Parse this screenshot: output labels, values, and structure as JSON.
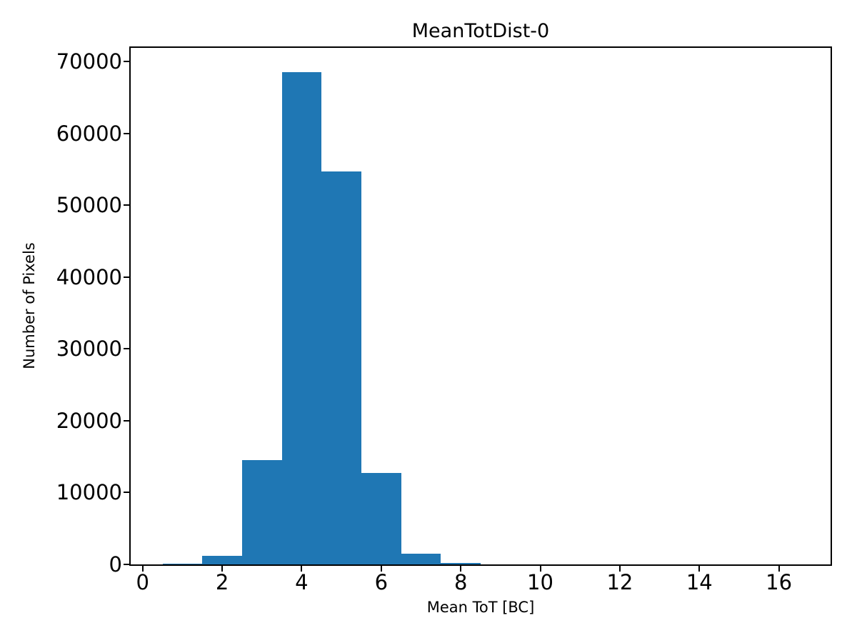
{
  "chart_data": {
    "type": "bar",
    "subtype": "histogram",
    "title": "MeanTotDist-0",
    "xlabel": "Mean ToT [BC]",
    "ylabel": "Number of Pixels",
    "bin_edges": [
      0.5,
      1.5,
      2.5,
      3.5,
      4.5,
      5.5,
      6.5,
      7.5,
      8.5,
      9.5,
      10.5,
      11.5,
      12.5,
      13.5,
      14.5,
      15.5,
      16.5
    ],
    "values": [
      150,
      1150,
      14500,
      68500,
      54700,
      12700,
      1500,
      250,
      0,
      0,
      0,
      0,
      0,
      0,
      0,
      0
    ],
    "xticks": [
      0,
      2,
      4,
      6,
      8,
      10,
      12,
      14,
      16
    ],
    "yticks": [
      0,
      10000,
      20000,
      30000,
      40000,
      50000,
      60000,
      70000
    ],
    "xlim": [
      -0.3,
      17.3
    ],
    "ylim": [
      0,
      71900
    ],
    "bar_color": "#1f77b4",
    "axis_color": "#000000",
    "background_color": "#ffffff",
    "grid": false,
    "legend": null
  }
}
